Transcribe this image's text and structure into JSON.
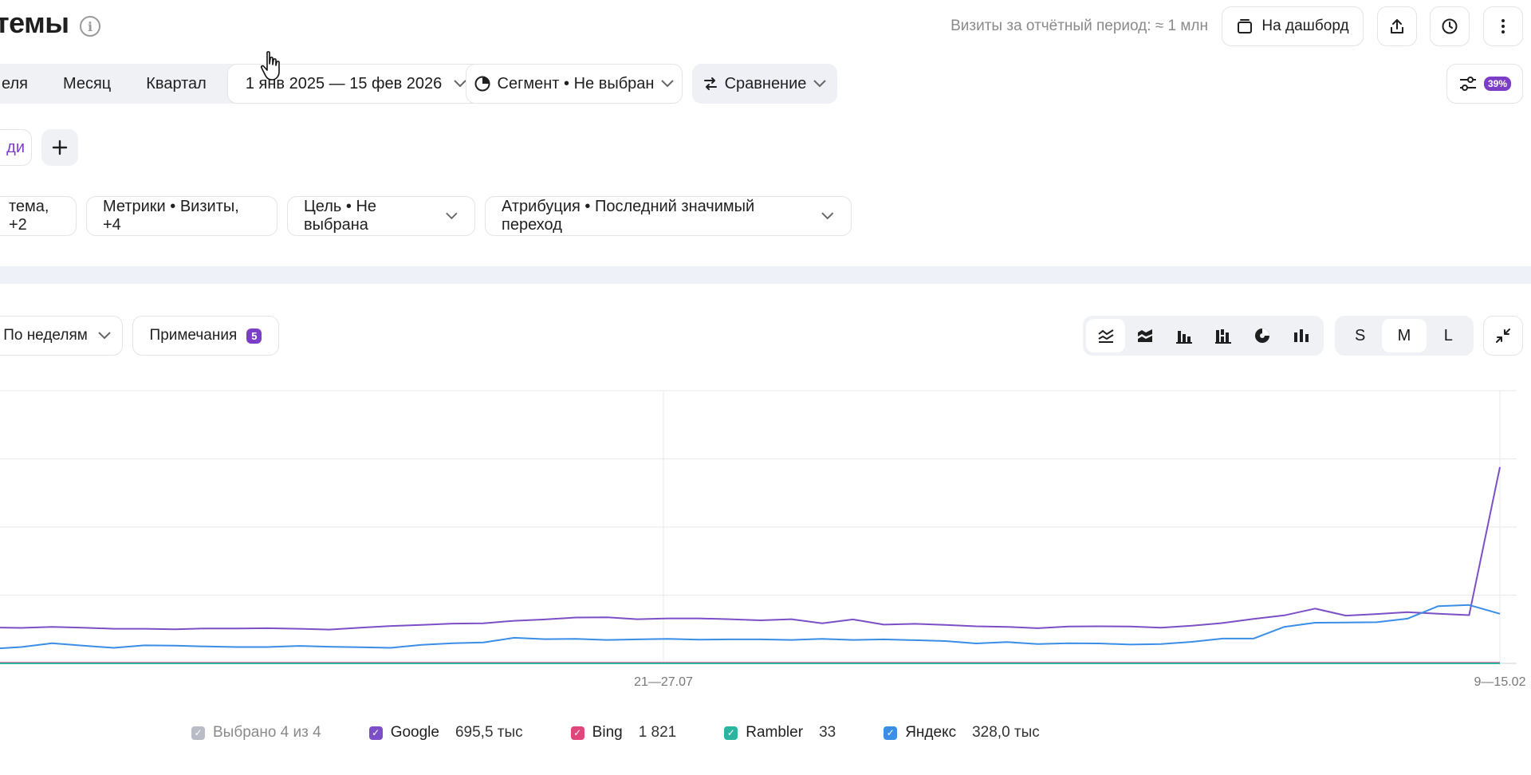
{
  "header": {
    "title": "темы",
    "visits_label": "Визиты за отчётный период: ≈ 1 млн",
    "dashboard_label": "На дашборд"
  },
  "period": {
    "week_label": "еля",
    "month_label": "Месяц",
    "quarter_label": "Квартал",
    "date_range": "1 янв 2025 — 15 фев 2026"
  },
  "segment_label": "Сегмент • Не выбран",
  "compare_label": "Сравнение",
  "filter_badge": "39%",
  "chip_partial": "ди",
  "pills": {
    "grouping": "тема, +2",
    "metrics": "Метрики • Визиты, +4",
    "goal": "Цель • Не выбрана",
    "attribution": "Атрибуция • Последний значимый переход"
  },
  "chart_controls": {
    "group_by": "По неделям",
    "notes_label": "Примечания",
    "notes_count": "5",
    "sizes": [
      "S",
      "M",
      "L"
    ],
    "active_size": "M"
  },
  "legend": {
    "selected": "Выбрано 4 из 4",
    "items": [
      {
        "name": "Google",
        "value": "695,5 тыс",
        "color": "#7d4fc6"
      },
      {
        "name": "Bing",
        "value": "1 821",
        "color": "#e0457b"
      },
      {
        "name": "Rambler",
        "value": "33",
        "color": "#2bb5a0"
      },
      {
        "name": "Яндекс",
        "value": "328,0 тыс",
        "color": "#3a8ee6"
      }
    ]
  },
  "chart_data": {
    "type": "line",
    "x_ticks": [
      "21—27.07",
      "9—15.02"
    ],
    "grid": true,
    "series": [
      {
        "name": "Google",
        "color": "#7d4fc6",
        "values": [
          13.2,
          13.0,
          13.4,
          13.1,
          12.7,
          12.7,
          12.5,
          12.8,
          12.8,
          12.9,
          12.7,
          12.4,
          13.1,
          13.7,
          14.1,
          14.6,
          14.7,
          15.6,
          16.1,
          16.8,
          16.9,
          16.2,
          16.5,
          16.5,
          16.2,
          15.8,
          16.2,
          14.7,
          16.1,
          14.2,
          14.5,
          14.1,
          13.6,
          13.4,
          12.9,
          13.5,
          13.6,
          13.5,
          13.1,
          13.8,
          14.8,
          16.3,
          17.6,
          20.1,
          17.5,
          18.1,
          18.8,
          18.2,
          17.7,
          72.0
        ]
      },
      {
        "name": "Яндекс",
        "color": "#3a8ee6",
        "values": [
          5.3,
          6.0,
          7.4,
          6.5,
          5.7,
          6.6,
          6.5,
          6.2,
          6.0,
          6.0,
          6.4,
          6.1,
          5.9,
          5.7,
          6.8,
          7.4,
          7.7,
          9.4,
          8.9,
          9.0,
          8.6,
          8.8,
          9.0,
          8.7,
          8.8,
          8.8,
          8.6,
          9.0,
          8.6,
          8.8,
          8.5,
          8.2,
          7.3,
          7.8,
          7.1,
          7.4,
          7.3,
          6.9,
          7.1,
          7.9,
          9.1,
          9.1,
          13.4,
          14.9,
          15.0,
          15.1,
          16.4,
          21.0,
          21.4,
          18.2
        ]
      },
      {
        "name": "Bing",
        "color": "#e0457b",
        "values": [
          0.2,
          0.2,
          0.2,
          0.2,
          0.2,
          0.2,
          0.2,
          0.2,
          0.2,
          0.2,
          0.2,
          0.2,
          0.2,
          0.2,
          0.2,
          0.2,
          0.2,
          0.2,
          0.2,
          0.2,
          0.2,
          0.2,
          0.2,
          0.2,
          0.2,
          0.2,
          0.2,
          0.2,
          0.2,
          0.2,
          0.2,
          0.2,
          0.2,
          0.2,
          0.2,
          0.2,
          0.2,
          0.2,
          0.2,
          0.2,
          0.2,
          0.2,
          0.2,
          0.2,
          0.2,
          0.2,
          0.2,
          0.2,
          0.2,
          0.2
        ]
      },
      {
        "name": "Rambler",
        "color": "#2bb5a0",
        "values": [
          0,
          0,
          0,
          0,
          0,
          0,
          0,
          0,
          0,
          0,
          0,
          0,
          0,
          0,
          0,
          0,
          0,
          0,
          0,
          0,
          0,
          0,
          0,
          0,
          0,
          0,
          0,
          0,
          0,
          0,
          0,
          0,
          0,
          0,
          0,
          0,
          0,
          0,
          0,
          0,
          0,
          0,
          0,
          0,
          0,
          0,
          0,
          0,
          0,
          0
        ]
      }
    ]
  }
}
